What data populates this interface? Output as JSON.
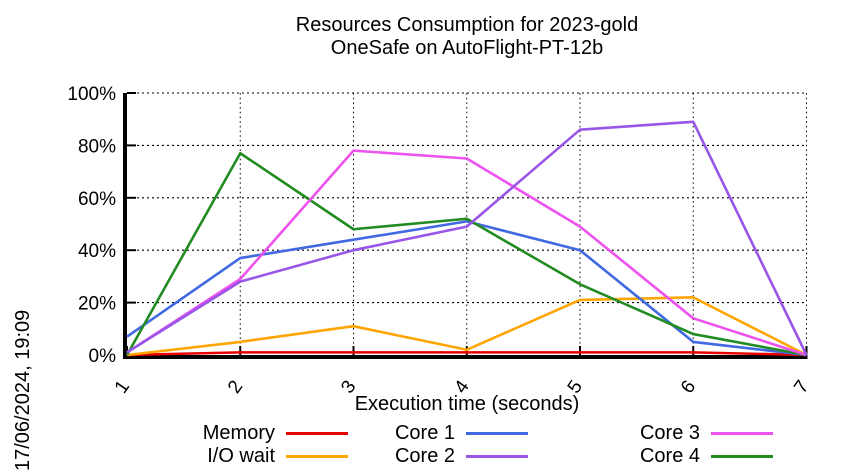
{
  "timestamp": "17/06/2024, 19:09",
  "chart_data": {
    "type": "line",
    "title": "Resources Consumption for 2023-gold",
    "subtitle": "OneSafe on AutoFlight-PT-12b",
    "xlabel": "Execution time (seconds)",
    "x": [
      1,
      2,
      3,
      4,
      5,
      6,
      7
    ],
    "xlim": [
      1,
      7
    ],
    "ylim": [
      0,
      100
    ],
    "yticks": [
      0,
      20,
      40,
      60,
      80,
      100
    ],
    "ytick_suffix": "%",
    "grid": true,
    "legend_position": "below",
    "series": [
      {
        "name": "Memory",
        "color": "#e60000",
        "values": [
          0,
          1,
          1,
          1,
          1,
          1,
          0
        ]
      },
      {
        "name": "I/O wait",
        "color": "#ffa500",
        "values": [
          0,
          5,
          11,
          2,
          21,
          22,
          0
        ]
      },
      {
        "name": "Core 1",
        "color": "#4169e1",
        "values": [
          7,
          37,
          44,
          51,
          40,
          5,
          0
        ]
      },
      {
        "name": "Core 2",
        "color": "#9955e8",
        "values": [
          1,
          28,
          40,
          49,
          86,
          89,
          0
        ]
      },
      {
        "name": "Core 3",
        "color": "#ee52ee",
        "values": [
          1,
          29,
          78,
          75,
          49,
          14,
          0
        ]
      },
      {
        "name": "Core 4",
        "color": "#228b22",
        "values": [
          0,
          77,
          48,
          52,
          27,
          8,
          0
        ]
      }
    ],
    "draw_order": [
      "Memory",
      "I/O wait",
      "Core 1",
      "Core 4",
      "Core 3",
      "Core 2"
    ],
    "legend_columns": [
      [
        "Memory",
        "I/O wait"
      ],
      [
        "Core 1",
        "Core 2"
      ],
      [
        "Core 3",
        "Core 4"
      ]
    ]
  }
}
